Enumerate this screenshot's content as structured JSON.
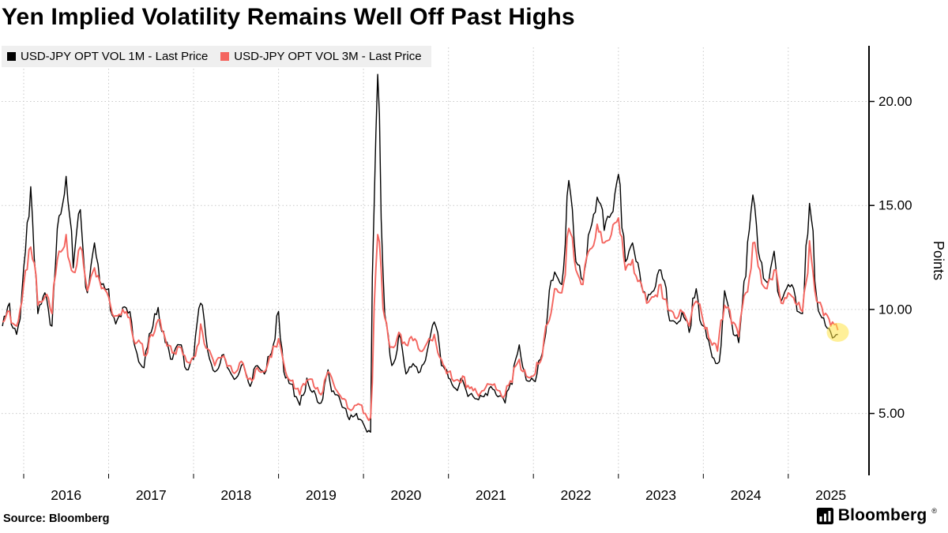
{
  "page": {
    "title": "Yen Implied Volatility Remains Well Off Past Highs",
    "source_label": "Source: Bloomberg",
    "brand_name": "Bloomberg",
    "brand_reg": "®"
  },
  "chart_data": {
    "type": "line",
    "title": "Yen Implied Volatility Remains Well Off Past Highs",
    "ylabel": "Points",
    "ylabel_side": "right",
    "grid": true,
    "grid_color": "#c9c9c9",
    "legend_position": "top-left",
    "ylim": [
      2.1,
      22.6
    ],
    "yticks": [
      {
        "value": 5,
        "label": "5.00"
      },
      {
        "value": 10,
        "label": "10.00"
      },
      {
        "value": 15,
        "label": "15.00"
      },
      {
        "value": 20,
        "label": "20.00"
      }
    ],
    "xlim": [
      2015.74,
      2025.95
    ],
    "xticks": [
      {
        "year": 2016,
        "label": "2016"
      },
      {
        "year": 2017,
        "label": "2017"
      },
      {
        "year": 2018,
        "label": "2018"
      },
      {
        "year": 2019,
        "label": "2019"
      },
      {
        "year": 2020,
        "label": "2020"
      },
      {
        "year": 2021,
        "label": "2021"
      },
      {
        "year": 2022,
        "label": "2022"
      },
      {
        "year": 2023,
        "label": "2023"
      },
      {
        "year": 2024,
        "label": "2024"
      },
      {
        "year": 2025,
        "label": "2025"
      }
    ],
    "x_start": 2015.75,
    "x_step_years": 0.0833333,
    "x_unit": "monthly",
    "series": [
      {
        "name": "usd-jpy-opt-vol-1m",
        "label": "USD-JPY OPT VOL 1M - Last Price",
        "color": "#000000",
        "width": 1.4,
        "values": [
          9.2,
          10.3,
          8.8,
          12.0,
          15.9,
          9.8,
          10.8,
          9.2,
          14.5,
          16.4,
          12.0,
          14.8,
          10.8,
          13.2,
          11.2,
          11.0,
          9.3,
          10.1,
          9.9,
          7.9,
          7.2,
          8.9,
          10.1,
          8.4,
          7.6,
          8.3,
          7.1,
          7.6,
          10.3,
          8.0,
          7.0,
          7.8,
          7.1,
          6.7,
          7.4,
          6.3,
          7.3,
          6.9,
          7.9,
          9.9,
          6.7,
          6.4,
          5.4,
          6.7,
          6.1,
          5.5,
          7.1,
          5.9,
          5.3,
          4.7,
          5.0,
          4.5,
          4.1,
          21.3,
          9.8,
          7.3,
          8.8,
          6.9,
          7.4,
          7.0,
          8.0,
          9.4,
          7.3,
          6.7,
          6.2,
          6.6,
          5.9,
          5.7,
          5.8,
          6.3,
          5.8,
          5.5,
          6.4,
          8.3,
          6.6,
          6.6,
          7.6,
          9.8,
          11.8,
          11.2,
          16.2,
          12.3,
          11.4,
          13.8,
          15.4,
          13.8,
          14.6,
          16.5,
          12.3,
          13.2,
          11.8,
          10.4,
          10.9,
          11.9,
          9.9,
          9.4,
          9.9,
          8.9,
          11.0,
          9.2,
          8.1,
          7.4,
          10.9,
          9.4,
          8.4,
          11.6,
          15.5,
          12.4,
          11.3,
          12.8,
          10.4,
          11.2,
          10.6,
          9.8,
          15.1,
          10.6,
          9.6,
          8.9,
          8.8
        ]
      },
      {
        "name": "usd-jpy-opt-vol-3m",
        "label": "USD-JPY OPT VOL 3M - Last Price",
        "color": "#f4655f",
        "width": 1.9,
        "values": [
          9.4,
          9.9,
          9.2,
          11.2,
          13.0,
          10.2,
          10.6,
          9.8,
          12.8,
          13.6,
          11.8,
          13.0,
          10.9,
          12.0,
          11.0,
          10.6,
          9.7,
          10.0,
          9.6,
          8.4,
          7.8,
          8.8,
          9.5,
          8.6,
          7.9,
          8.2,
          7.5,
          7.7,
          9.3,
          8.1,
          7.3,
          7.7,
          7.3,
          7.0,
          7.4,
          6.7,
          7.2,
          7.0,
          7.7,
          8.6,
          7.0,
          6.6,
          5.9,
          6.6,
          6.3,
          5.9,
          7.0,
          6.2,
          5.7,
          5.2,
          5.4,
          5.0,
          4.8,
          13.6,
          9.6,
          8.2,
          8.9,
          8.3,
          8.5,
          8.0,
          8.4,
          8.8,
          7.6,
          7.0,
          6.6,
          6.8,
          6.2,
          6.0,
          6.1,
          6.4,
          6.1,
          5.9,
          6.5,
          7.6,
          6.8,
          6.8,
          7.5,
          9.3,
          11.0,
          10.8,
          13.9,
          11.9,
          11.2,
          12.9,
          14.1,
          13.2,
          13.6,
          14.4,
          11.9,
          12.4,
          11.4,
          10.3,
          10.6,
          11.2,
          10.0,
          9.6,
          9.9,
          9.2,
          10.4,
          9.4,
          8.5,
          8.0,
          10.2,
          9.3,
          8.7,
          10.8,
          13.2,
          11.9,
          11.0,
          11.9,
          10.3,
          10.8,
          10.3,
          9.9,
          13.3,
          10.4,
          9.7,
          9.2,
          9.0
        ]
      }
    ],
    "annotations": [
      {
        "type": "highlight-circle",
        "x": 2025.583,
        "value": 8.9,
        "radius": 13,
        "color": "#ffe345",
        "opacity": 0.55
      }
    ]
  }
}
